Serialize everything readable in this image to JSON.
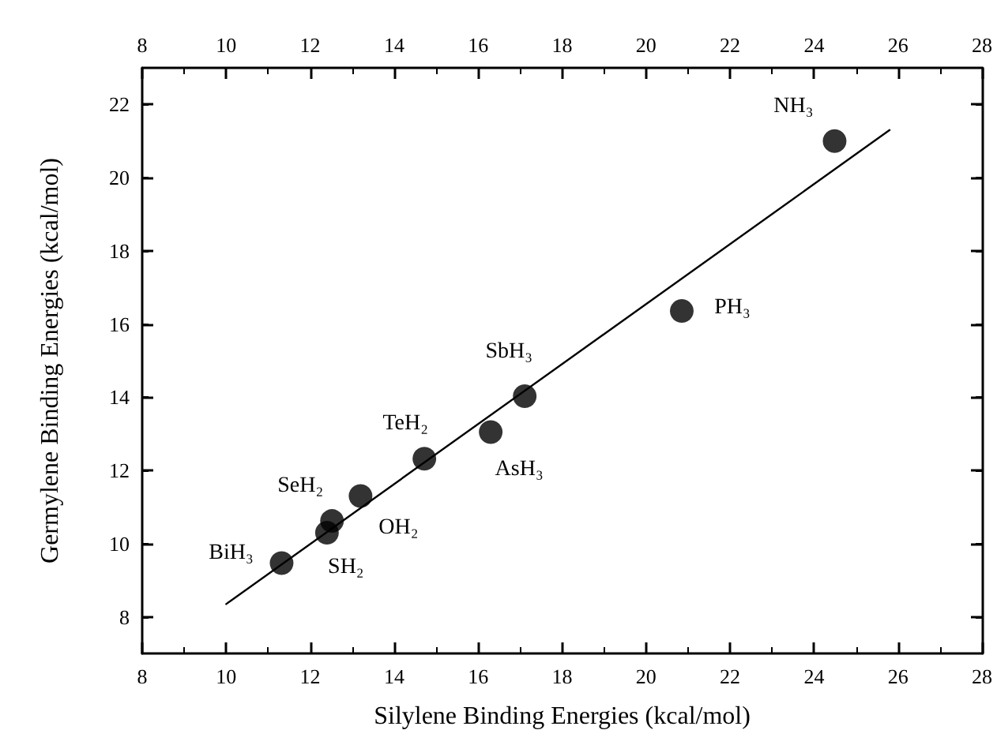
{
  "chart_data": {
    "type": "scatter",
    "xlabel": "Silylene Binding Energies (kcal/mol)",
    "ylabel": "Germylene Binding Energies (kcal/mol)",
    "series": [
      {
        "color": "#000000",
        "marker": "circle",
        "x": [
          11.32,
          12.4,
          12.52,
          13.2,
          14.72,
          16.3,
          17.11,
          20.85,
          24.49
        ],
        "values": [
          9.47,
          10.3,
          10.62,
          11.3,
          12.32,
          13.05,
          14.03,
          16.36,
          21.0
        ]
      },
      {
        "type": "line",
        "color": "#000000",
        "marker": "none",
        "line_style": "solid",
        "x": [
          10.0,
          25.8
        ],
        "values": [
          8.35,
          21.3
        ]
      }
    ],
    "annotations": [
      {
        "text": "BiH₃",
        "x": 11.32,
        "y": 9.47
      },
      {
        "text": "SH₂",
        "x": 12.4,
        "y": 10.3
      },
      {
        "text": "SeH₂",
        "x": 12.52,
        "y": 10.62
      },
      {
        "text": "OH₂",
        "x": 13.2,
        "y": 11.3
      },
      {
        "text": "TeH₂",
        "x": 14.72,
        "y": 12.32
      },
      {
        "text": "AsH₃",
        "x": 16.3,
        "y": 13.05
      },
      {
        "text": "SbH₃",
        "x": 17.11,
        "y": 14.03
      },
      {
        "text": "PH₃",
        "x": 20.85,
        "y": 16.36
      },
      {
        "text": "NH₃",
        "x": 24.49,
        "y": 21.0
      }
    ],
    "xlim": [
      8,
      28
    ],
    "xticks": [
      8,
      10,
      12,
      14,
      16,
      18,
      20,
      22,
      24,
      26,
      28
    ],
    "x2lim": [
      8,
      28
    ],
    "x2ticks": [
      8,
      10,
      12,
      14,
      16,
      18,
      20,
      22,
      24,
      26,
      28
    ],
    "ylim": [
      7,
      23
    ],
    "yticks": [
      8,
      10,
      12,
      14,
      16,
      18,
      20,
      22
    ],
    "grid": false
  }
}
